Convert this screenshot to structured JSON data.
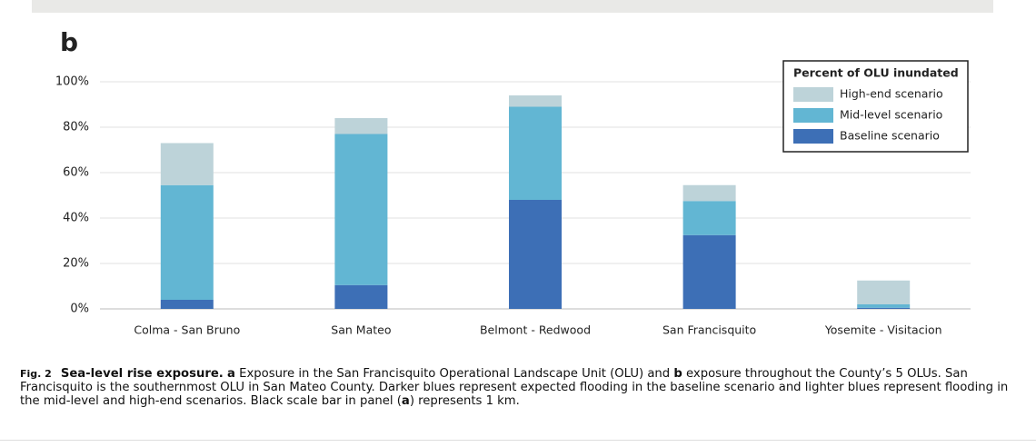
{
  "panel_label": "b",
  "chart_data": {
    "type": "stacked-bar",
    "categories": [
      "Colma - San Bruno",
      "San Mateo",
      "Belmont - Redwood",
      "San Francisquito",
      "Yosemite - Visitacion"
    ],
    "series": [
      {
        "name": "Baseline scenario",
        "color": "#3d6fb6",
        "values": [
          4,
          10.5,
          48,
          32.5,
          0.5
        ]
      },
      {
        "name": "Mid-level scenario",
        "color": "#62b6d3",
        "values": [
          50.5,
          66.5,
          41,
          15,
          1.5
        ]
      },
      {
        "name": "High-end scenario",
        "color": "#bdd3d9",
        "values": [
          18.5,
          7,
          5,
          7,
          10.5
        ]
      }
    ],
    "ylim": [
      0,
      100
    ],
    "yticks": [
      {
        "value": 0,
        "label": "0%"
      },
      {
        "value": 20,
        "label": "20%"
      },
      {
        "value": 40,
        "label": "40%"
      },
      {
        "value": 60,
        "label": "60%"
      },
      {
        "value": 80,
        "label": "80%"
      },
      {
        "value": 100,
        "label": "100%"
      }
    ],
    "grid": true,
    "legend_title": "Percent of OLU inundated",
    "legend_position": "upper right"
  },
  "caption": {
    "label": "Fig. 2",
    "title": "Sea-level rise exposure.",
    "body": [
      {
        "text": "a",
        "bold": true
      },
      {
        "text": "Exposure in the San Francisquito Operational Landscape Unit (OLU) and",
        "bold": false
      },
      {
        "text": "b",
        "bold": true
      },
      {
        "text": "exposure throughout the County’s 5 OLUs. San Francisquito is the southernmost OLU in San Mateo County. Darker blues represent expected flooding in the baseline scenario and lighter blues represent flooding in the mid-level and high-end scenarios. Black scale bar in panel (",
        "bold": false
      },
      {
        "text": "a",
        "bold": true
      },
      {
        "text": ") represents 1 km.",
        "bold": false
      }
    ]
  }
}
